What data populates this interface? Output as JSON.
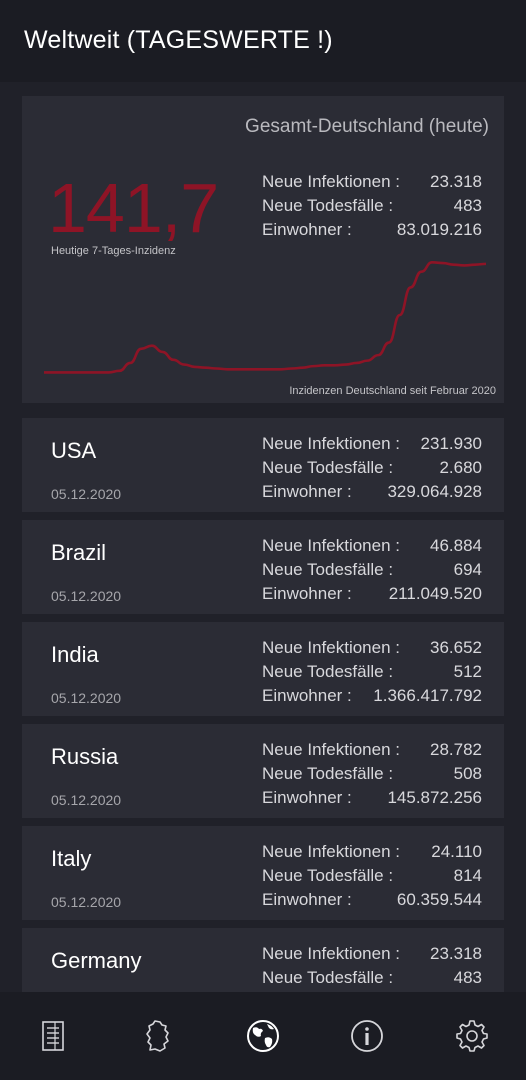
{
  "appbar": {
    "title": "Weltweit (TAGESWERTE !)"
  },
  "summary": {
    "heading": "Gesamt-Deutschland (heute)",
    "incidence": "141,7",
    "incidence_label": "Heutige 7-Tages-Inzidenz",
    "stats": [
      {
        "label": "Neue Infektionen :",
        "value": "23.318"
      },
      {
        "label": "Neue Todesfälle :",
        "value": "483"
      },
      {
        "label": "Einwohner :",
        "value": "83.019.216"
      }
    ],
    "chart_caption": "Inzidenzen Deutschland seit Februar 2020"
  },
  "chart_data": {
    "type": "line",
    "title": "",
    "xlabel": "",
    "ylabel": "",
    "x": [
      0,
      1,
      2,
      3,
      4,
      5,
      6,
      7,
      8,
      9,
      10,
      11,
      12,
      13,
      14,
      15,
      16,
      17,
      18,
      19,
      20,
      21,
      22,
      23,
      24,
      25,
      26,
      27,
      28,
      29,
      30,
      31,
      32,
      33,
      34,
      35,
      36,
      37,
      38,
      39,
      40,
      41
    ],
    "series": [
      {
        "values": [
          2,
          2,
          2,
          2,
          2,
          2,
          2,
          4,
          14,
          32,
          36,
          28,
          18,
          12,
          9,
          8,
          7,
          6,
          6,
          6,
          6,
          6,
          6,
          7,
          8,
          10,
          11,
          11,
          12,
          14,
          17,
          24,
          40,
          75,
          110,
          130,
          142,
          141,
          139,
          138,
          139,
          140
        ]
      }
    ],
    "ylim": [
      0,
      150
    ],
    "grid": false,
    "legend": "none",
    "line_color": "#8e1426"
  },
  "countries": [
    {
      "name": "USA",
      "date": "05.12.2020",
      "stats": [
        {
          "label": "Neue Infektionen :",
          "value": "231.930"
        },
        {
          "label": "Neue Todesfälle :",
          "value": "2.680"
        },
        {
          "label": "Einwohner :",
          "value": "329.064.928"
        }
      ]
    },
    {
      "name": "Brazil",
      "date": "05.12.2020",
      "stats": [
        {
          "label": "Neue Infektionen :",
          "value": "46.884"
        },
        {
          "label": "Neue Todesfälle :",
          "value": "694"
        },
        {
          "label": "Einwohner :",
          "value": "211.049.520"
        }
      ]
    },
    {
      "name": "India",
      "date": "05.12.2020",
      "stats": [
        {
          "label": "Neue Infektionen :",
          "value": "36.652"
        },
        {
          "label": "Neue Todesfälle :",
          "value": "512"
        },
        {
          "label": "Einwohner :",
          "value": "1.366.417.792"
        }
      ]
    },
    {
      "name": "Russia",
      "date": "05.12.2020",
      "stats": [
        {
          "label": "Neue Infektionen :",
          "value": "28.782"
        },
        {
          "label": "Neue Todesfälle :",
          "value": "508"
        },
        {
          "label": "Einwohner :",
          "value": "145.872.256"
        }
      ]
    },
    {
      "name": "Italy",
      "date": "05.12.2020",
      "stats": [
        {
          "label": "Neue Infektionen :",
          "value": "24.110"
        },
        {
          "label": "Neue Todesfälle :",
          "value": "814"
        },
        {
          "label": "Einwohner :",
          "value": "60.359.544"
        }
      ]
    },
    {
      "name": "Germany",
      "date": "",
      "stats": [
        {
          "label": "Neue Infektionen :",
          "value": "23.318"
        },
        {
          "label": "Neue Todesfälle :",
          "value": "483"
        }
      ]
    }
  ],
  "nav": [
    {
      "icon": "list-document-icon"
    },
    {
      "icon": "germany-map-icon"
    },
    {
      "icon": "globe-icon",
      "active": true
    },
    {
      "icon": "info-icon"
    },
    {
      "icon": "gear-icon"
    }
  ]
}
